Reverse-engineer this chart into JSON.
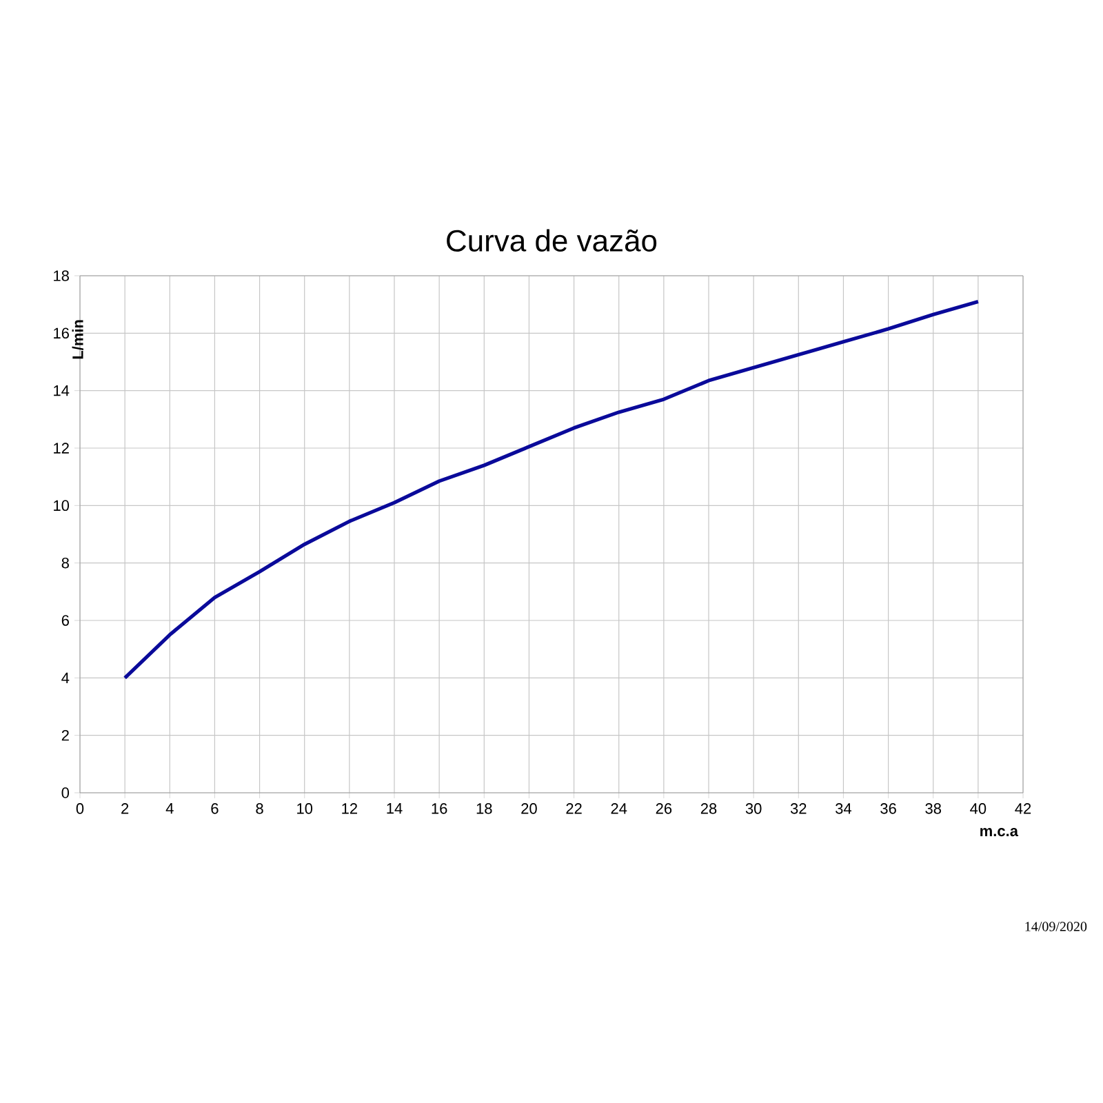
{
  "chart_data": {
    "type": "line",
    "title": "Curva de vazão",
    "xlabel": "m.c.a",
    "ylabel": "L/min",
    "x": [
      2,
      4,
      6,
      8,
      10,
      12,
      14,
      16,
      18,
      20,
      22,
      24,
      26,
      28,
      30,
      32,
      34,
      36,
      38,
      40
    ],
    "series": [
      {
        "color": "#0a0a9a",
        "values": [
          4.0,
          5.5,
          6.8,
          7.7,
          8.65,
          9.45,
          10.1,
          10.85,
          11.4,
          12.05,
          12.7,
          13.25,
          13.7,
          14.35,
          14.8,
          15.25,
          15.7,
          16.15,
          16.65,
          17.1
        ]
      }
    ],
    "xlim": [
      0,
      42
    ],
    "ylim": [
      0,
      18
    ],
    "xticks": [
      0,
      2,
      4,
      6,
      8,
      10,
      12,
      14,
      16,
      18,
      20,
      22,
      24,
      26,
      28,
      30,
      32,
      34,
      36,
      38,
      40,
      42
    ],
    "yticks": [
      0,
      2,
      4,
      6,
      8,
      10,
      12,
      14,
      16,
      18
    ],
    "grid": true,
    "marker": "none",
    "line_style": "solid",
    "annotations": [
      "14/09/2020"
    ]
  }
}
